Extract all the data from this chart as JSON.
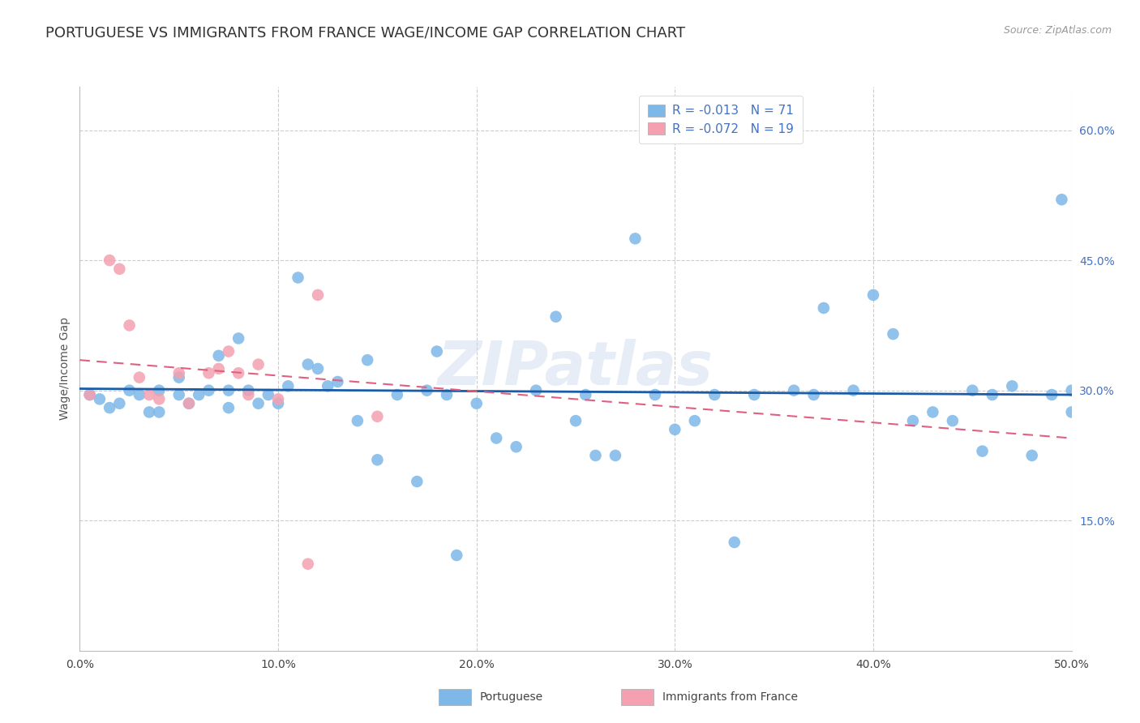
{
  "title": "PORTUGUESE VS IMMIGRANTS FROM FRANCE WAGE/INCOME GAP CORRELATION CHART",
  "source": "Source: ZipAtlas.com",
  "ylabel": "Wage/Income Gap",
  "xlim": [
    0.0,
    0.5
  ],
  "ylim": [
    0.0,
    0.65
  ],
  "xticks": [
    0.0,
    0.1,
    0.2,
    0.3,
    0.4,
    0.5
  ],
  "xtick_labels": [
    "0.0%",
    "10.0%",
    "20.0%",
    "30.0%",
    "40.0%",
    "50.0%"
  ],
  "yticks_right": [
    0.15,
    0.3,
    0.45,
    0.6
  ],
  "ytick_labels_right": [
    "15.0%",
    "30.0%",
    "45.0%",
    "60.0%"
  ],
  "watermark": "ZIPatlas",
  "legend_line1": "R = -0.013   N = 71",
  "legend_line2": "R = -0.072   N = 19",
  "legend_label_blue": "Portuguese",
  "legend_label_pink": "Immigrants from France",
  "blue_color": "#7eb8e8",
  "pink_color": "#f4a0b0",
  "blue_line_color": "#1a5ca8",
  "pink_line_color": "#e06080",
  "title_fontsize": 13,
  "label_fontsize": 10,
  "tick_fontsize": 10,
  "dot_size": 110,
  "blue_dots_x": [
    0.005,
    0.01,
    0.015,
    0.02,
    0.025,
    0.03,
    0.035,
    0.04,
    0.04,
    0.05,
    0.05,
    0.055,
    0.06,
    0.065,
    0.07,
    0.075,
    0.075,
    0.08,
    0.085,
    0.09,
    0.095,
    0.1,
    0.105,
    0.11,
    0.115,
    0.12,
    0.125,
    0.13,
    0.14,
    0.145,
    0.15,
    0.16,
    0.17,
    0.175,
    0.18,
    0.185,
    0.19,
    0.2,
    0.21,
    0.22,
    0.23,
    0.24,
    0.25,
    0.255,
    0.26,
    0.27,
    0.28,
    0.29,
    0.3,
    0.31,
    0.32,
    0.33,
    0.34,
    0.36,
    0.37,
    0.375,
    0.39,
    0.4,
    0.41,
    0.42,
    0.43,
    0.44,
    0.45,
    0.455,
    0.46,
    0.47,
    0.48,
    0.49,
    0.495,
    0.5,
    0.5
  ],
  "blue_dots_y": [
    0.295,
    0.29,
    0.28,
    0.285,
    0.3,
    0.295,
    0.275,
    0.3,
    0.275,
    0.295,
    0.315,
    0.285,
    0.295,
    0.3,
    0.34,
    0.3,
    0.28,
    0.36,
    0.3,
    0.285,
    0.295,
    0.285,
    0.305,
    0.43,
    0.33,
    0.325,
    0.305,
    0.31,
    0.265,
    0.335,
    0.22,
    0.295,
    0.195,
    0.3,
    0.345,
    0.295,
    0.11,
    0.285,
    0.245,
    0.235,
    0.3,
    0.385,
    0.265,
    0.295,
    0.225,
    0.225,
    0.475,
    0.295,
    0.255,
    0.265,
    0.295,
    0.125,
    0.295,
    0.3,
    0.295,
    0.395,
    0.3,
    0.41,
    0.365,
    0.265,
    0.275,
    0.265,
    0.3,
    0.23,
    0.295,
    0.305,
    0.225,
    0.295,
    0.52,
    0.275,
    0.3
  ],
  "pink_dots_x": [
    0.005,
    0.015,
    0.02,
    0.025,
    0.03,
    0.035,
    0.04,
    0.05,
    0.055,
    0.065,
    0.07,
    0.075,
    0.08,
    0.085,
    0.09,
    0.1,
    0.115,
    0.12,
    0.15
  ],
  "pink_dots_y": [
    0.295,
    0.45,
    0.44,
    0.375,
    0.315,
    0.295,
    0.29,
    0.32,
    0.285,
    0.32,
    0.325,
    0.345,
    0.32,
    0.295,
    0.33,
    0.29,
    0.1,
    0.41,
    0.27
  ],
  "blue_trend_x": [
    0.0,
    0.5
  ],
  "blue_trend_y": [
    0.302,
    0.295
  ],
  "pink_trend_x": [
    0.0,
    0.5
  ],
  "pink_trend_y": [
    0.335,
    0.245
  ]
}
